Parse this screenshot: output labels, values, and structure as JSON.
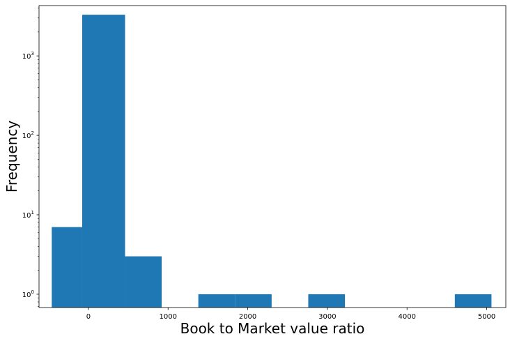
{
  "chart_data": {
    "type": "bar",
    "subtype": "histogram",
    "title": "",
    "xlabel": "Book to Market value ratio",
    "ylabel": "Frequency",
    "yscale": "log",
    "bar_color": "#1f77b4",
    "xlim": [
      -620,
      5240
    ],
    "ylim": [
      0.68,
      4300
    ],
    "bins": [
      {
        "x0": -460,
        "x1": -78,
        "count": 7
      },
      {
        "x0": -78,
        "x1": 460,
        "count": 3300
      },
      {
        "x0": 460,
        "x1": 920,
        "count": 3
      },
      {
        "x0": 920,
        "x1": 1380,
        "count": 0
      },
      {
        "x0": 1380,
        "x1": 1840,
        "count": 1
      },
      {
        "x0": 1840,
        "x1": 2300,
        "count": 1
      },
      {
        "x0": 2300,
        "x1": 2760,
        "count": 0
      },
      {
        "x0": 2760,
        "x1": 3220,
        "count": 1
      },
      {
        "x0": 3220,
        "x1": 3680,
        "count": 0
      },
      {
        "x0": 3680,
        "x1": 4140,
        "count": 0
      },
      {
        "x0": 4140,
        "x1": 4600,
        "count": 0
      },
      {
        "x0": 4600,
        "x1": 5060,
        "count": 1
      }
    ],
    "x_ticks": [
      {
        "value": 0,
        "label": "0"
      },
      {
        "value": 1000,
        "label": "1000"
      },
      {
        "value": 2000,
        "label": "2000"
      },
      {
        "value": 3000,
        "label": "3000"
      },
      {
        "value": 4000,
        "label": "4000"
      },
      {
        "value": 5000,
        "label": "5000"
      }
    ],
    "y_ticks": [
      {
        "value": 1,
        "base": "10",
        "exp": "0"
      },
      {
        "value": 10,
        "base": "10",
        "exp": "1"
      },
      {
        "value": 100,
        "base": "10",
        "exp": "2"
      },
      {
        "value": 1000,
        "base": "10",
        "exp": "3"
      }
    ],
    "grid": false,
    "legend": "none"
  }
}
